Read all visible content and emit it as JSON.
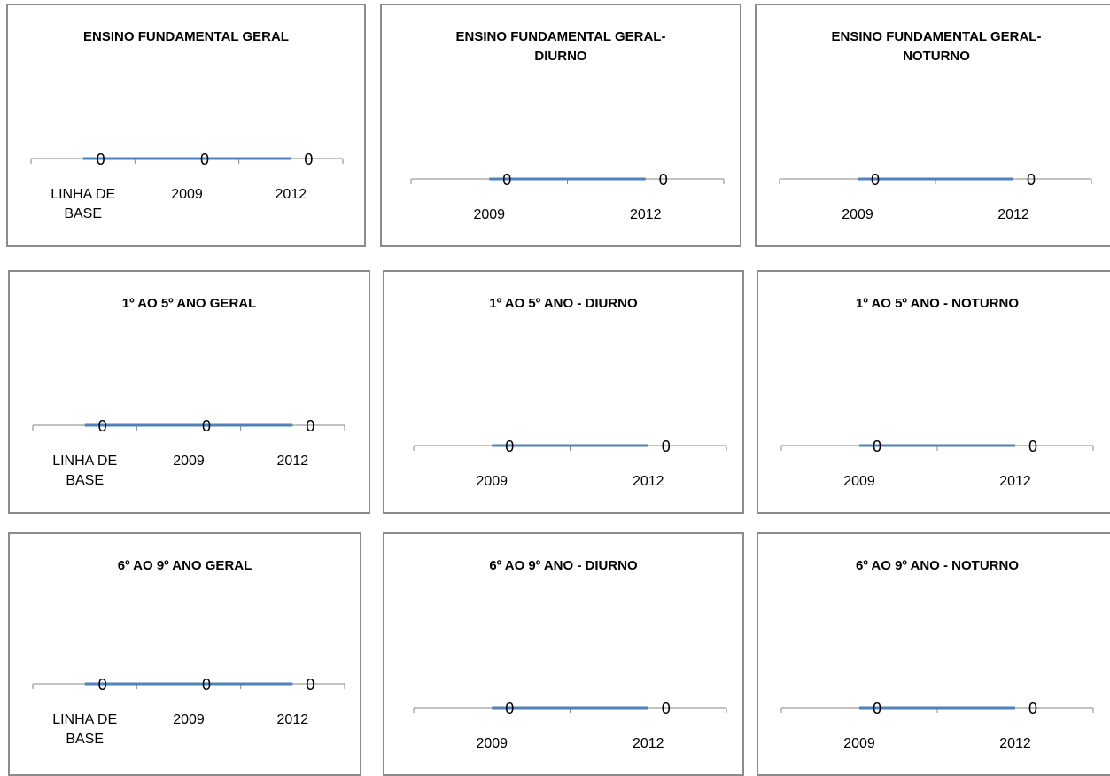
{
  "chart_data": [
    {
      "type": "line",
      "title": [
        "ENSINO FUNDAMENTAL GERAL"
      ],
      "categories": [
        [
          "LINHA DE",
          "BASE"
        ],
        [
          "2009"
        ],
        [
          "2012"
        ]
      ],
      "values": [
        0,
        0,
        0
      ]
    },
    {
      "type": "line",
      "title": [
        "ENSINO FUNDAMENTAL GERAL-",
        "DIURNO"
      ],
      "categories": [
        [
          "2009"
        ],
        [
          "2012"
        ]
      ],
      "values": [
        0,
        0
      ]
    },
    {
      "type": "line",
      "title": [
        "ENSINO FUNDAMENTAL GERAL-",
        "NOTURNO"
      ],
      "categories": [
        [
          "2009"
        ],
        [
          "2012"
        ]
      ],
      "values": [
        0,
        0
      ]
    },
    {
      "type": "line",
      "title": [
        "1º AO 5º ANO GERAL"
      ],
      "categories": [
        [
          "LINHA DE",
          "BASE"
        ],
        [
          "2009"
        ],
        [
          "2012"
        ]
      ],
      "values": [
        0,
        0,
        0
      ]
    },
    {
      "type": "line",
      "title": [
        "1º AO 5º ANO - DIURNO"
      ],
      "categories": [
        [
          "2009"
        ],
        [
          "2012"
        ]
      ],
      "values": [
        0,
        0
      ]
    },
    {
      "type": "line",
      "title": [
        "1º AO 5º ANO - NOTURNO"
      ],
      "categories": [
        [
          "2009"
        ],
        [
          "2012"
        ]
      ],
      "values": [
        0,
        0
      ]
    },
    {
      "type": "line",
      "title": [
        "6º AO 9º ANO GERAL"
      ],
      "categories": [
        [
          "LINHA DE",
          "BASE"
        ],
        [
          "2009"
        ],
        [
          "2012"
        ]
      ],
      "values": [
        0,
        0,
        0
      ]
    },
    {
      "type": "line",
      "title": [
        "6º AO 9º ANO - DIURNO"
      ],
      "categories": [
        [
          "2009"
        ],
        [
          "2012"
        ]
      ],
      "values": [
        0,
        0
      ]
    },
    {
      "type": "line",
      "title": [
        "6º AO 9º ANO - NOTURNO"
      ],
      "categories": [
        [
          "2009"
        ],
        [
          "2012"
        ]
      ],
      "values": [
        0,
        0
      ]
    }
  ],
  "colors": {
    "line": "#4f81bd",
    "axis": "#868686",
    "border": "#8c8c8c"
  }
}
